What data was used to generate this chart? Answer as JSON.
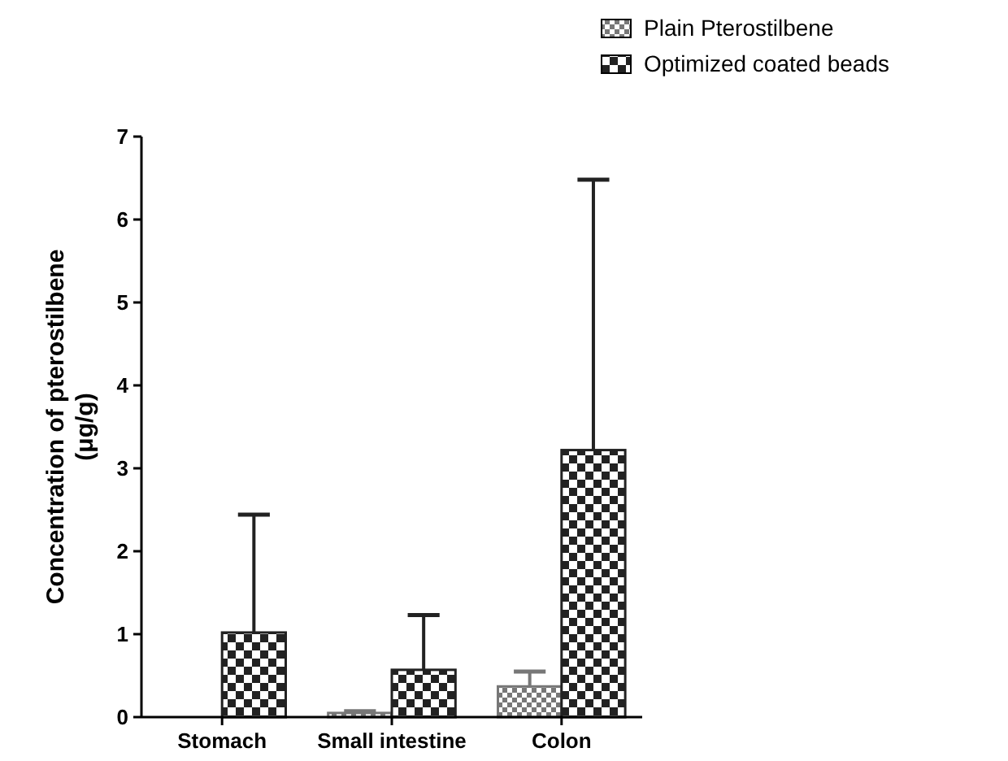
{
  "chart_data": {
    "type": "bar",
    "ylabel": "Concentration of pterostilbene\n(μg/g)",
    "categories": [
      "Stomach",
      "Small intestine",
      "Colon"
    ],
    "series": [
      {
        "name": "Plain Pterostilbene",
        "color": "#777777",
        "values": [
          0,
          0.05,
          0.37
        ],
        "errors": [
          null,
          [
            0.05,
            0.07
          ],
          [
            0.37,
            0.55
          ]
        ]
      },
      {
        "name": "Optimized coated beads",
        "color": "#222222",
        "values": [
          1.02,
          0.57,
          3.22
        ],
        "errors": [
          [
            1.02,
            2.44
          ],
          [
            0.57,
            1.23
          ],
          [
            3.22,
            6.48
          ]
        ]
      }
    ],
    "ylim": [
      0,
      7
    ],
    "yticks": [
      0,
      1,
      2,
      3,
      4,
      5,
      6,
      7
    ],
    "legend": "top right",
    "grid": false
  }
}
